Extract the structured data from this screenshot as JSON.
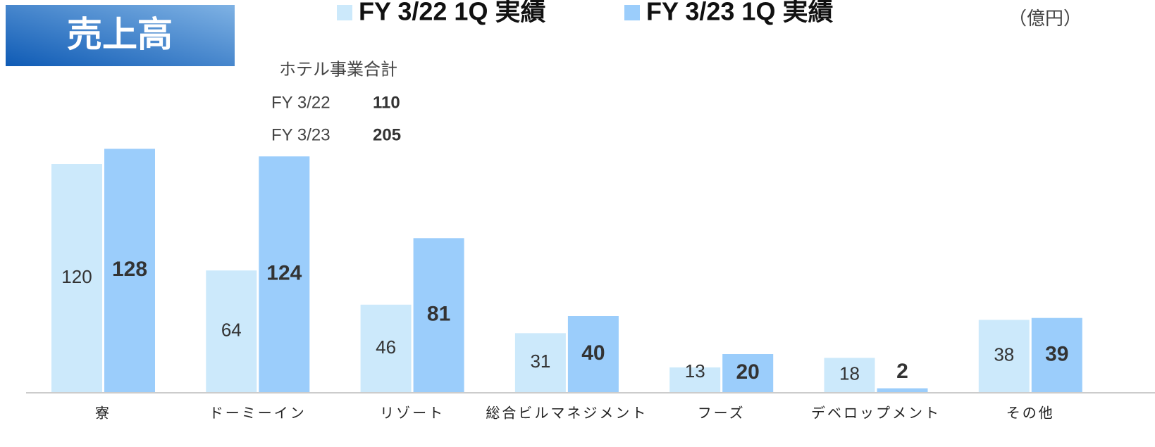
{
  "chart_data": {
    "type": "bar",
    "title": "売上高",
    "unit": "（億円）",
    "categories": [
      "寮",
      "ドーミーイン",
      "リゾート",
      "総合ビルマネジメント",
      "フーズ",
      "デベロップメント",
      "その他"
    ],
    "series": [
      {
        "name": "FY 3/22 1Q  実績",
        "color": "#cce9fb",
        "values": [
          120,
          64,
          46,
          31,
          13,
          18,
          38
        ]
      },
      {
        "name": "FY 3/23 1Q  実績",
        "color": "#9bcdfb",
        "values": [
          128,
          124,
          81,
          40,
          20,
          2,
          39
        ]
      }
    ],
    "annotation": {
      "title": "ホテル事業合計",
      "rows": [
        {
          "label": "FY 3/22",
          "value": 110
        },
        {
          "label": "FY 3/23",
          "value": 205
        }
      ]
    }
  }
}
